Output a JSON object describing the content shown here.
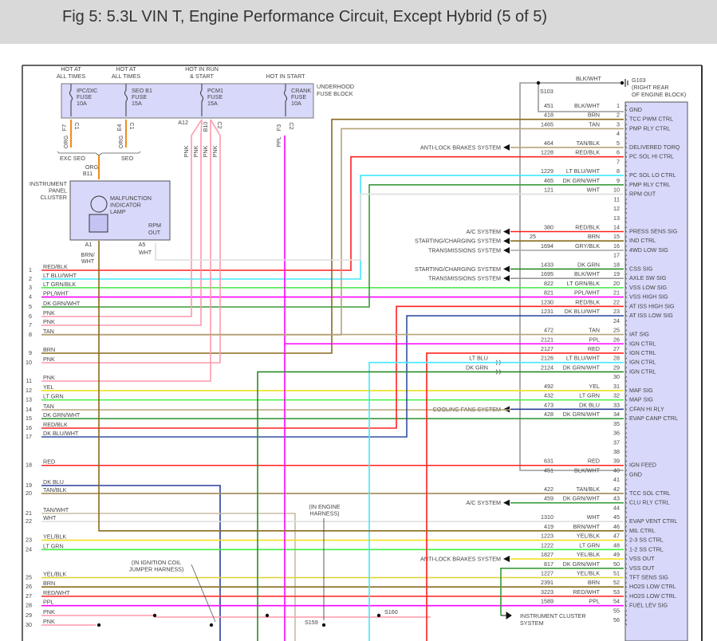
{
  "title": "Fig 5: 5.3L VIN T, Engine Performance Circuit, Except Hybrid (5 of 5)",
  "fuse_block": {
    "label": [
      "UNDERHOOD",
      "FUSE BLOCK"
    ],
    "fuses": [
      {
        "supply": [
          "HOT AT",
          "ALL TIMES"
        ],
        "name": [
          "IPC/DIC",
          "FUSE",
          "10A"
        ],
        "pin": "F7",
        "conn": "C1",
        "wire": "ORG",
        "color": "#f08c1e"
      },
      {
        "supply": [
          "HOT AT",
          "ALL TIMES"
        ],
        "name": [
          "SEO B1",
          "FUSE",
          "15A"
        ],
        "pin": "E4",
        "conn": "C1",
        "wire": "ORG",
        "color": "#f08c1e"
      },
      {
        "supply": [
          "HOT IN RUN",
          "& START"
        ],
        "name": [
          "PCM1",
          "FUSE",
          "15A"
        ],
        "pin": "A12",
        "pin2": "B10",
        "conn": "C2",
        "wire": "PNK",
        "color": "#ff9aac"
      },
      {
        "supply": [
          "",
          "HOT IN START"
        ],
        "name": [
          "CRANK",
          "FUSE",
          "10A"
        ],
        "pin": "F3",
        "conn": "C2",
        "wire": "PPL",
        "color": "#ff00ff"
      }
    ],
    "pnk_labels": [
      "PNK",
      "PNK",
      "PNK",
      "PNK"
    ],
    "options": [
      "EXC SEO",
      "SEO"
    ]
  },
  "cluster": {
    "label": [
      "INSTRUMENT",
      "PANEL",
      "CLUSTER"
    ],
    "in_wire": "ORG",
    "in_pin": "B11",
    "lamp": [
      "MALFUNCTION",
      "INDICATOR",
      "LAMP"
    ],
    "rpm": [
      "RPM",
      "OUT"
    ],
    "pin_a1": "A1",
    "wire_a1": [
      "BRN/",
      "WHT"
    ],
    "pin_a5": "A5",
    "wire_a5": "WHT"
  },
  "ground": {
    "splice": "S103",
    "wire": "BLK/WHT",
    "label": [
      "G103",
      "(RIGHT REAR",
      "OF ENGINE BLOCK)"
    ]
  },
  "left_rows": [
    {
      "n": "1",
      "w": "RED/BLK",
      "c": "#ff2020"
    },
    {
      "n": "2",
      "w": "LT BLU/WHT",
      "c": "#40e8ff"
    },
    {
      "n": "3",
      "w": "LT GRN/BLK",
      "c": "#40e840"
    },
    {
      "n": "4",
      "w": "PPL/WHT",
      "c": "#ff00ff"
    },
    {
      "n": "5",
      "w": "DK GRN/WHT",
      "c": "#3a9a3a"
    },
    {
      "n": "6",
      "w": "PNK",
      "c": "#ff9aac"
    },
    {
      "n": "7",
      "w": "PNK",
      "c": "#ff9aac"
    },
    {
      "n": "8",
      "w": "TAN",
      "c": "#b8a478"
    },
    {
      "n": "9",
      "w": "BRN",
      "c": "#8b6a1e"
    },
    {
      "n": "10",
      "w": "PNK",
      "c": "#ff9aac"
    },
    {
      "n": "11",
      "w": "PNK",
      "c": "#ff9aac"
    },
    {
      "n": "12",
      "w": "YEL",
      "c": "#f0e020"
    },
    {
      "n": "13",
      "w": "LT GRN",
      "c": "#40f040"
    },
    {
      "n": "14",
      "w": "TAN",
      "c": "#b8a478"
    },
    {
      "n": "15",
      "w": "DK GRN/WHT",
      "c": "#3a9a3a"
    },
    {
      "n": "16",
      "w": "RED/BLK",
      "c": "#ff2020"
    },
    {
      "n": "17",
      "w": "DK BLU/WHT",
      "c": "#3050a0"
    },
    {
      "n": "18",
      "w": "RED",
      "c": "#ff2020"
    },
    {
      "n": "19",
      "w": "DK BLU",
      "c": "#2a3f9a"
    },
    {
      "n": "20",
      "w": "TAN/BLK",
      "c": "#a08a5a"
    },
    {
      "n": "21",
      "w": "TAN/WHT",
      "c": "#c8bca0"
    },
    {
      "n": "22",
      "w": "WHT",
      "c": "#dddddd"
    },
    {
      "n": "23",
      "w": "YEL/BLK",
      "c": "#f0e020"
    },
    {
      "n": "24",
      "w": "LT GRN",
      "c": "#40f040"
    },
    {
      "n": "25",
      "w": "YEL/BLK",
      "c": "#e0d030"
    },
    {
      "n": "26",
      "w": "BRN",
      "c": "#8b6a1e"
    },
    {
      "n": "27",
      "w": "RED/WHT",
      "c": "#ff3030"
    },
    {
      "n": "28",
      "w": "PPL",
      "c": "#ff00ff"
    },
    {
      "n": "29",
      "w": "PNK",
      "c": "#ff9aac"
    },
    {
      "n": "30",
      "w": "PNK",
      "c": "#ff9aac"
    }
  ],
  "pcm_pins": [
    {
      "p": "1",
      "ckt": "451",
      "w": "BLK/WHT",
      "f": "GND",
      "c": "#999999"
    },
    {
      "p": "2",
      "ckt": "418",
      "w": "BRN",
      "f": "TCC PWM CTRL",
      "c": "#8b6a1e"
    },
    {
      "p": "3",
      "ckt": "1465",
      "w": "TAN",
      "f": "PMP RLY CTRL",
      "c": "#b8a478"
    },
    {
      "p": "4"
    },
    {
      "p": "5",
      "ckt": "464",
      "w": "TAN/BLK",
      "f": "DELIVERED TORQ",
      "c": "#b8a478",
      "ext": "ANTI-LOCK BRAKES SYSTEM"
    },
    {
      "p": "6",
      "ckt": "1228",
      "w": "RED/BLK",
      "f": "PC SOL HI CTRL",
      "c": "#ff2020"
    },
    {
      "p": "7"
    },
    {
      "p": "8",
      "ckt": "1229",
      "w": "LT BLU/WHT",
      "f": "PC SOL LO CTRL",
      "c": "#40e8ff"
    },
    {
      "p": "9",
      "ckt": "465",
      "w": "DK GRN/WHT",
      "f": "PMP RLY CTRL",
      "c": "#3a9a3a"
    },
    {
      "p": "10",
      "ckt": "121",
      "w": "WHT",
      "f": "RPM OUT",
      "c": "#dddddd"
    },
    {
      "p": "11"
    },
    {
      "p": "12"
    },
    {
      "p": "13"
    },
    {
      "p": "14",
      "ckt": "380",
      "w": "RED/BLK",
      "f": "PRESS SENS SIG",
      "c": "#ff2020",
      "ext": "A/C SYSTEM"
    },
    {
      "p": "15",
      "ckt": "25",
      "w": "BRN",
      "f": "IND CTRL",
      "c": "#8b6a1e",
      "ext": "STARTING/CHARGING SYSTEM"
    },
    {
      "p": "16",
      "ckt": "1694",
      "w": "GRY/BLK",
      "f": "4WD LOW SIG",
      "c": "#aaaaaa",
      "ext": "TRANSMISSIONS SYSTEM"
    },
    {
      "p": "17"
    },
    {
      "p": "18",
      "ckt": "1433",
      "w": "DK GRN",
      "f": "CSS SIG",
      "c": "#2a8a2a",
      "ext": "STARTING/CHARGING SYSTEM"
    },
    {
      "p": "19",
      "ckt": "1695",
      "w": "BLK/WHT",
      "f": "AXLE SW SIG",
      "c": "#999999",
      "ext": "TRANSMISSIONS SYSTEM"
    },
    {
      "p": "20",
      "ckt": "822",
      "w": "LT GRN/BLK",
      "f": "VSS LOW SIG",
      "c": "#40e840"
    },
    {
      "p": "21",
      "ckt": "821",
      "w": "PPL/WHT",
      "f": "VSS HIGH SIG",
      "c": "#ff00ff"
    },
    {
      "p": "22",
      "ckt": "1230",
      "w": "RED/BLK",
      "f": "AT ISS HIGH SIG",
      "c": "#ff2020"
    },
    {
      "p": "23",
      "ckt": "1231",
      "w": "DK BLU/WHT",
      "f": "AT ISS LOW SIG",
      "c": "#3050a0"
    },
    {
      "p": "24"
    },
    {
      "p": "25",
      "ckt": "472",
      "w": "TAN",
      "f": "IAT SIG",
      "c": "#b8a478"
    },
    {
      "p": "26",
      "ckt": "2121",
      "w": "PPL",
      "f": "IGN CTRL",
      "c": "#ff00ff"
    },
    {
      "p": "27",
      "ckt": "2127",
      "w": "RED",
      "f": "IGN CTRL",
      "c": "#ff2020"
    },
    {
      "p": "28",
      "ckt": "2126",
      "w": "LT BLU/WHT",
      "f": "IGN CTRL",
      "c": "#40e8ff",
      "alt": "LT BLU"
    },
    {
      "p": "29",
      "ckt": "2124",
      "w": "DK GRN/WHT",
      "f": "IGN CTRL",
      "c": "#2a8a2a",
      "alt": "DK GRN"
    },
    {
      "p": "30"
    },
    {
      "p": "31",
      "ckt": "492",
      "w": "YEL",
      "f": "MAF SIG",
      "c": "#f0e020"
    },
    {
      "p": "32",
      "ckt": "432",
      "w": "LT GRN",
      "f": "MAP SIG",
      "c": "#40f040"
    },
    {
      "p": "33",
      "ckt": "473",
      "w": "DK BLU",
      "f": "CFAN HI RLY",
      "c": "#2a3f9a",
      "ext": "COOLING FANS SYSTEM"
    },
    {
      "p": "34",
      "ckt": "428",
      "w": "DK GRN/WHT",
      "f": "EVAP CANP CTRL",
      "c": "#3a9a3a"
    },
    {
      "p": "35"
    },
    {
      "p": "36"
    },
    {
      "p": "37"
    },
    {
      "p": "38"
    },
    {
      "p": "39",
      "ckt": "631",
      "w": "RED",
      "f": "IGN FEED",
      "c": "#ff2020"
    },
    {
      "p": "40",
      "ckt": "451",
      "w": "BLK/WHT",
      "f": "GND",
      "c": "#999999"
    },
    {
      "p": "41"
    },
    {
      "p": "42",
      "ckt": "422",
      "w": "TAN/BLK",
      "f": "TCC SOL CTRL",
      "c": "#a08a5a"
    },
    {
      "p": "43",
      "ckt": "459",
      "w": "DK GRN/WHT",
      "f": "CLU RLY CTRL",
      "c": "#3a9a3a",
      "ext": "A/C SYSTEM"
    },
    {
      "p": "44"
    },
    {
      "p": "45",
      "ckt": "1310",
      "w": "WHT",
      "f": "EVAP VENT CTRL",
      "c": "#dddddd"
    },
    {
      "p": "46",
      "ckt": "419",
      "w": "BRN/WHT",
      "f": "MIL CTRL",
      "c": "#9a7a3a"
    },
    {
      "p": "47",
      "ckt": "1223",
      "w": "YEL/BLK",
      "f": "2-3 SS CTRL",
      "c": "#f0e020"
    },
    {
      "p": "48",
      "ckt": "1222",
      "w": "LT GRN",
      "f": "1-2 SS CTRL",
      "c": "#40f040"
    },
    {
      "p": "49",
      "ckt": "1827",
      "w": "YEL/BLK",
      "f": "VSS OUT",
      "c": "#f0e020",
      "ext": "ANTI-LOCK BRAKES SYSTEM"
    },
    {
      "p": "50",
      "ckt": "817",
      "w": "DK GRN/WHT",
      "f": "VSS OUT",
      "c": "#3a9a3a"
    },
    {
      "p": "51",
      "ckt": "1227",
      "w": "YEL/BLK",
      "f": "TFT SENS SIG",
      "c": "#e0d030"
    },
    {
      "p": "52",
      "ckt": "2391",
      "w": "BRN",
      "f": "HO2S LOW CTRL",
      "c": "#8b6a1e"
    },
    {
      "p": "53",
      "ckt": "3223",
      "w": "RED/WHT",
      "f": "HO2S LOW CTRL",
      "c": "#ff3030"
    },
    {
      "p": "54",
      "ckt": "1589",
      "w": "PPL",
      "f": "FUEL LEV SIG",
      "c": "#ff00ff"
    },
    {
      "p": "55"
    },
    {
      "p": "56"
    }
  ],
  "ic_system": [
    "INSTRUMENT CLUSTER",
    "SYSTEM"
  ],
  "notes": {
    "engine_harness": [
      "(IN ENGINE",
      "HARNESS)"
    ],
    "coil_harness": [
      "(IN IGNITION COIL",
      "JUMPER HARNESS)"
    ],
    "s159": "S159",
    "s160": "S160"
  }
}
